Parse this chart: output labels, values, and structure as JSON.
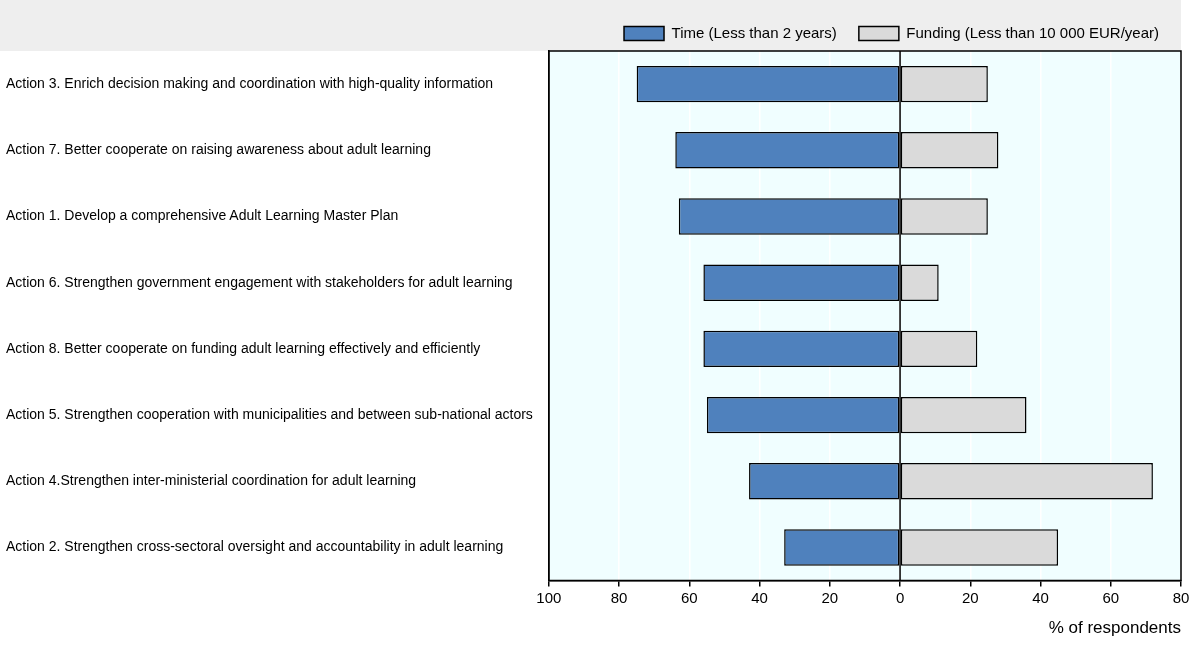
{
  "chart_data": {
    "type": "bar",
    "orientation": "horizontal",
    "stacked": true,
    "categories": [
      "Action 3. Enrich decision making and coordination with high-quality information",
      "Action 7. Better cooperate on raising awareness about adult learning",
      "Action 1. Develop a comprehensive Adult Learning Master Plan",
      "Action 6. Strengthen government engagement with stakeholders for adult learning",
      "Action 8. Better cooperate on funding adult learning effectively and efficiently",
      "Action 5. Strengthen cooperation with municipalities and between sub-national actors",
      "Action 4.Strengthen inter-ministerial coordination for adult learning",
      "Action 2. Strengthen cross-sectoral oversight and accountability in adult learning"
    ],
    "series": [
      {
        "name": "Time (Less than 2 years)",
        "color": "#4f81bd",
        "values": [
          -75,
          -64,
          -63,
          -56,
          -56,
          -55,
          -43,
          -33
        ]
      },
      {
        "name": "Funding (Less than 10 000 EUR/year)",
        "color": "#dadada",
        "values": [
          25,
          28,
          25,
          11,
          22,
          36,
          72,
          45
        ]
      }
    ],
    "xlabel": "% of respondents",
    "xlim": [
      -100,
      80
    ],
    "xticks": [
      {
        "value": -100,
        "label": "100"
      },
      {
        "value": -80,
        "label": "80"
      },
      {
        "value": -60,
        "label": "60"
      },
      {
        "value": -40,
        "label": "40"
      },
      {
        "value": -20,
        "label": "20"
      },
      0,
      20,
      40,
      60,
      80
    ],
    "grid": "x",
    "legend": "top right"
  }
}
